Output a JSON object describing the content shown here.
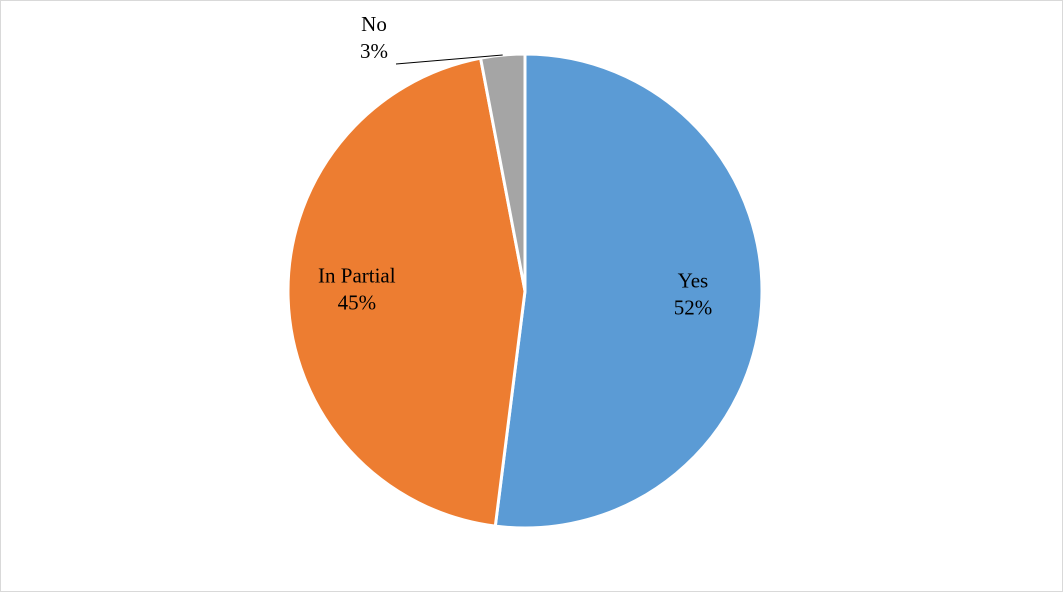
{
  "chart_data": {
    "type": "pie",
    "categories": [
      "Yes",
      "In Partial",
      "No"
    ],
    "values": [
      52,
      45,
      3
    ],
    "value_labels": [
      "52%",
      "45%",
      "3%"
    ],
    "colors": [
      "#5b9bd5",
      "#ed7d31",
      "#a5a5a5"
    ],
    "start_angle_deg": 0,
    "direction": "clockwise",
    "legend": "none"
  }
}
